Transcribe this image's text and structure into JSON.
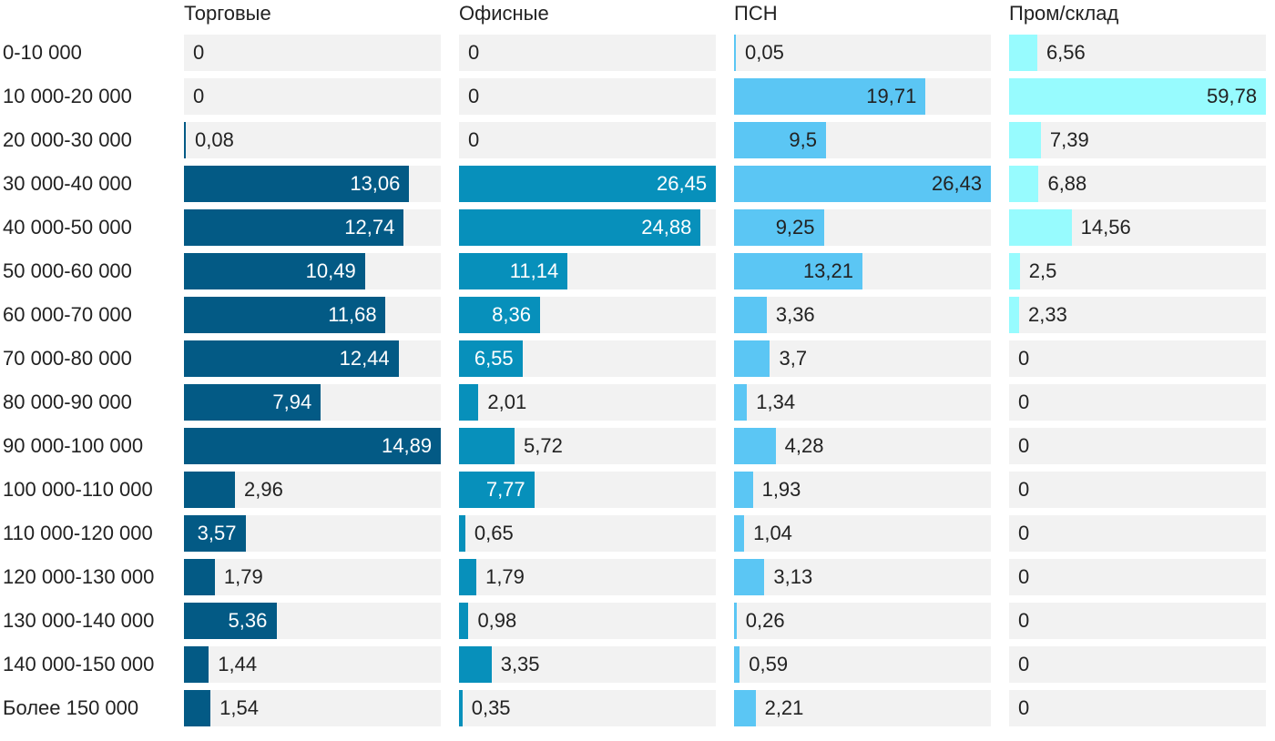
{
  "chart_data": {
    "type": "bar",
    "orientation": "horizontal",
    "layout": "small-multiples",
    "categories": [
      "0-10 000",
      "10 000-20 000",
      "20 000-30 000",
      "30 000-40 000",
      "40 000-50 000",
      "50 000-60 000",
      "60 000-70 000",
      "70 000-80 000",
      "80 000-90 000",
      "90 000-100 000",
      "100 000-110 000",
      "110 000-120 000",
      "120 000-130 000",
      "130 000-140 000",
      "140 000-150 000",
      "Более 150 000"
    ],
    "series": [
      {
        "name": "Торговые",
        "color": "#035a85",
        "values": [
          0,
          0,
          0.08,
          13.06,
          12.74,
          10.49,
          11.68,
          12.44,
          7.94,
          14.89,
          2.96,
          3.57,
          1.79,
          5.36,
          1.44,
          1.54
        ],
        "labels": [
          "0",
          "0",
          "0,08",
          "13,06",
          "12,74",
          "10,49",
          "11,68",
          "12,44",
          "7,94",
          "14,89",
          "2,96",
          "3,57",
          "1,79",
          "5,36",
          "1,44",
          "1,54"
        ],
        "xlim": [
          0,
          14.89
        ]
      },
      {
        "name": "Офисные",
        "color": "#0790bb",
        "values": [
          0,
          0,
          0,
          26.45,
          24.88,
          11.14,
          8.36,
          6.55,
          2.01,
          5.72,
          7.77,
          0.65,
          1.79,
          0.98,
          3.35,
          0.35
        ],
        "labels": [
          "0",
          "0",
          "0",
          "26,45",
          "24,88",
          "11,14",
          "8,36",
          "6,55",
          "2,01",
          "5,72",
          "7,77",
          "0,65",
          "1,79",
          "0,98",
          "3,35",
          "0,35"
        ],
        "xlim": [
          0,
          26.45
        ]
      },
      {
        "name": "ПСН",
        "color": "#5bc6f4",
        "values": [
          0.05,
          19.71,
          9.5,
          26.43,
          9.25,
          13.21,
          3.36,
          3.7,
          1.34,
          4.28,
          1.93,
          1.04,
          3.13,
          0.26,
          0.59,
          2.21
        ],
        "labels": [
          "0,05",
          "19,71",
          "9,5",
          "26,43",
          "9,25",
          "13,21",
          "3,36",
          "3,7",
          "1,34",
          "4,28",
          "1,93",
          "1,04",
          "3,13",
          "0,26",
          "0,59",
          "2,21"
        ],
        "xlim": [
          0,
          26.43
        ]
      },
      {
        "name": "Пром/склад",
        "color": "#97fbfe",
        "values": [
          6.56,
          59.78,
          7.39,
          6.88,
          14.56,
          2.5,
          2.33,
          0,
          0,
          0,
          0,
          0,
          0,
          0,
          0,
          0
        ],
        "labels": [
          "6,56",
          "59,78",
          "7,39",
          "6,88",
          "14,56",
          "2,5",
          "2,33",
          "0",
          "0",
          "0",
          "0",
          "0",
          "0",
          "0",
          "0",
          "0"
        ],
        "xlim": [
          0,
          59.78
        ]
      }
    ],
    "colors": {
      "track": "#f2f2f2",
      "label_dark": "#222222",
      "label_light": "#ffffff"
    },
    "grid": false,
    "legend": "none"
  }
}
